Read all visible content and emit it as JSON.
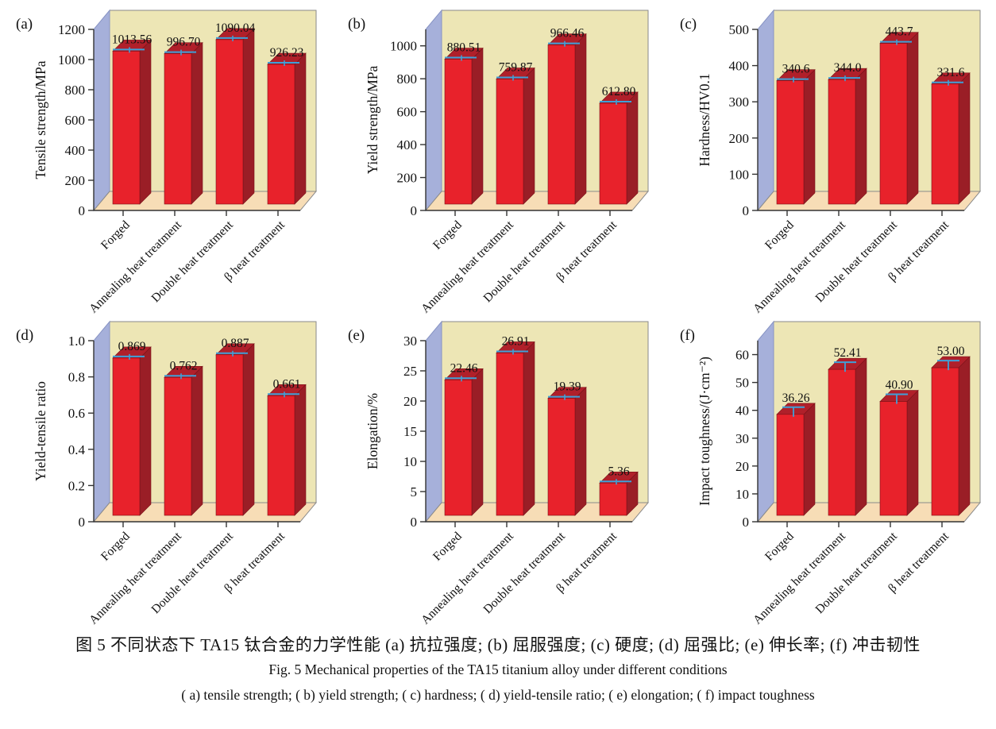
{
  "figure": {
    "caption_zh": "图 5  不同状态下 TA15 钛合金的力学性能  (a) 抗拉强度; (b) 屈服强度; (c) 硬度; (d) 屈强比; (e) 伸长率; (f) 冲击韧性",
    "caption_en_title": "Fig. 5   Mechanical properties of the TA15 titanium alloy under different conditions",
    "caption_en_sub": "( a)  tensile strength; ( b)  yield strength; ( c)  hardness; ( d)  yield-tensile ratio; ( e)  elongation; ( f)  impact toughness"
  },
  "colors": {
    "bar_front": "#e8222b",
    "bar_side": "#9a1e26",
    "bar_top": "#b0202a",
    "bar_edge": "#7a1118",
    "error_bar": "#3fa0d8",
    "wall_back": "#ede6b5",
    "wall_left": "#a6b0da",
    "wall_left_edge": "#8894c4",
    "floor": "#f7ddb6",
    "outline": "#8a8a8a",
    "axis": "#333333",
    "text": "#111111"
  },
  "chart_data": [
    {
      "type": "bar",
      "panel": "(a)",
      "ylabel": "Tensile strength/MPa",
      "categories": [
        "Forged",
        "Annealing heat treatment",
        "Double heat treatment",
        "β heat treatment"
      ],
      "values": [
        1013.56,
        996.7,
        1090.04,
        926.23
      ],
      "value_labels": [
        "1013.56",
        "996.70",
        "1090.04",
        "926.23"
      ],
      "ytick_labels": [
        "0",
        "200",
        "400",
        "600",
        "800",
        "1000",
        "1200"
      ],
      "ytick_values": [
        0,
        200,
        400,
        600,
        800,
        1000,
        1200
      ],
      "ylim": [
        0,
        1200
      ],
      "grid": false,
      "legend": "none"
    },
    {
      "type": "bar",
      "panel": "(b)",
      "ylabel": "Yield strength/MPa",
      "categories": [
        "Forged",
        "Annealing heat treatment",
        "Double heat treatment",
        "β heat treatment"
      ],
      "values": [
        880.51,
        759.87,
        966.46,
        612.8
      ],
      "value_labels": [
        "880.51",
        "759.87",
        "966.46",
        "612.80"
      ],
      "ytick_labels": [
        "0",
        "200",
        "400",
        "600",
        "800",
        "1000"
      ],
      "ytick_values": [
        0,
        200,
        400,
        600,
        800,
        1000
      ],
      "ylim": [
        0,
        1100
      ],
      "grid": false,
      "legend": "none"
    },
    {
      "type": "bar",
      "panel": "(c)",
      "ylabel": "Hardness/HV0.1",
      "categories": [
        "Forged",
        "Annealing heat treatment",
        "Double heat treatment",
        "β heat treatment"
      ],
      "values": [
        340.6,
        344.0,
        443.7,
        331.6
      ],
      "value_labels": [
        "340.6",
        "344.0",
        "443.7",
        "331.6"
      ],
      "ytick_labels": [
        "0",
        "100",
        "200",
        "300",
        "400",
        "500"
      ],
      "ytick_values": [
        0,
        100,
        200,
        300,
        400,
        500
      ],
      "ylim": [
        0,
        500
      ],
      "grid": false,
      "legend": "none"
    },
    {
      "type": "bar",
      "panel": "(d)",
      "ylabel": "Yield-tensile ratio",
      "categories": [
        "Forged",
        "Annealing heat treatment",
        "Double heat treatment",
        "β heat treatment"
      ],
      "values": [
        0.869,
        0.762,
        0.887,
        0.661
      ],
      "value_labels": [
        "0.869",
        "0.762",
        "0.887",
        "0.661"
      ],
      "ytick_labels": [
        "0",
        "0.2",
        "0.4",
        "0.6",
        "0.8",
        "1.0"
      ],
      "ytick_values": [
        0,
        0.2,
        0.4,
        0.6,
        0.8,
        1.0
      ],
      "ylim": [
        0,
        1.0
      ],
      "grid": false,
      "legend": "none"
    },
    {
      "type": "bar",
      "panel": "(e)",
      "ylabel": "Elongation/%",
      "categories": [
        "Forged",
        "Annealing heat treatment",
        "Double heat treatment",
        "β heat treatment"
      ],
      "values": [
        22.46,
        26.91,
        19.39,
        5.36
      ],
      "value_labels": [
        "22.46",
        "26.91",
        "19.39",
        "5.36"
      ],
      "ytick_labels": [
        "0",
        "5",
        "10",
        "15",
        "20",
        "25",
        "30"
      ],
      "ytick_values": [
        0,
        5,
        10,
        15,
        20,
        25,
        30
      ],
      "ylim": [
        0,
        30
      ],
      "grid": false,
      "legend": "none"
    },
    {
      "type": "bar",
      "panel": "(f)",
      "ylabel": "Impact toughness/(J·cm⁻²)",
      "categories": [
        "Forged",
        "Annealing heat treatment",
        "Double heat treatment",
        "β heat treatment"
      ],
      "values": [
        36.26,
        52.41,
        40.9,
        53.0
      ],
      "value_labels": [
        "36.26",
        "52.41",
        "40.90",
        "53.00"
      ],
      "ytick_labels": [
        "0",
        "10",
        "20",
        "30",
        "40",
        "50",
        "60"
      ],
      "ytick_values": [
        0,
        10,
        20,
        30,
        40,
        50,
        60
      ],
      "ylim": [
        0,
        65
      ],
      "grid": false,
      "legend": "none"
    }
  ]
}
